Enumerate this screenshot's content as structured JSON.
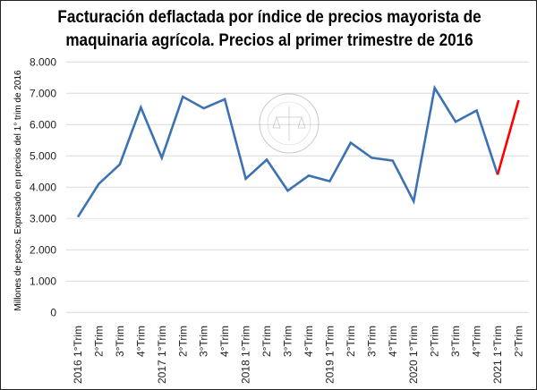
{
  "chart_data": {
    "type": "line",
    "title_line1": "Facturación deflactada por índice de precios mayorista de",
    "title_line2": "maquinaria agrícola. Precios al primer trimestre de 2016",
    "ylabel": "Millones de pesos. Expresado en precios del 1° trim de 2016",
    "xlabel": "",
    "ylim": [
      0,
      8000
    ],
    "yticks": [
      0,
      1000,
      2000,
      3000,
      4000,
      5000,
      6000,
      7000,
      8000
    ],
    "ytick_labels": [
      "0",
      "1.000",
      "2.000",
      "3.000",
      "4.000",
      "5.000",
      "6.000",
      "7.000",
      "8.000"
    ],
    "grid": true,
    "categories": [
      "2016 1°Trim",
      "2°Trim",
      "3°Trim",
      "4°Trim",
      "2017 1°Trim",
      "2°Trim",
      "3°Trim",
      "4°Trim",
      "2018 1°Trim",
      "2°Trim",
      "3°Trim",
      "4°Trim",
      "2019 1°Trim",
      "2°Trim",
      "3°Trim",
      "4°Trim",
      "2020 1°Trim",
      "2°Trim",
      "3°Trim",
      "4°Trim",
      "2021 1°Trim",
      "2°Trim"
    ],
    "values": [
      3050,
      4110,
      4730,
      6550,
      4940,
      6890,
      6520,
      6810,
      4270,
      4880,
      3890,
      4370,
      4190,
      5420,
      4940,
      4850,
      3550,
      7170,
      6090,
      6450,
      4400,
      6780
    ],
    "series_colors": {
      "main": "#3c72b4",
      "highlight_last_segment": "#ff0000"
    },
    "watermark": "BOLSA DE COMERCIO DE ROSARIO"
  }
}
